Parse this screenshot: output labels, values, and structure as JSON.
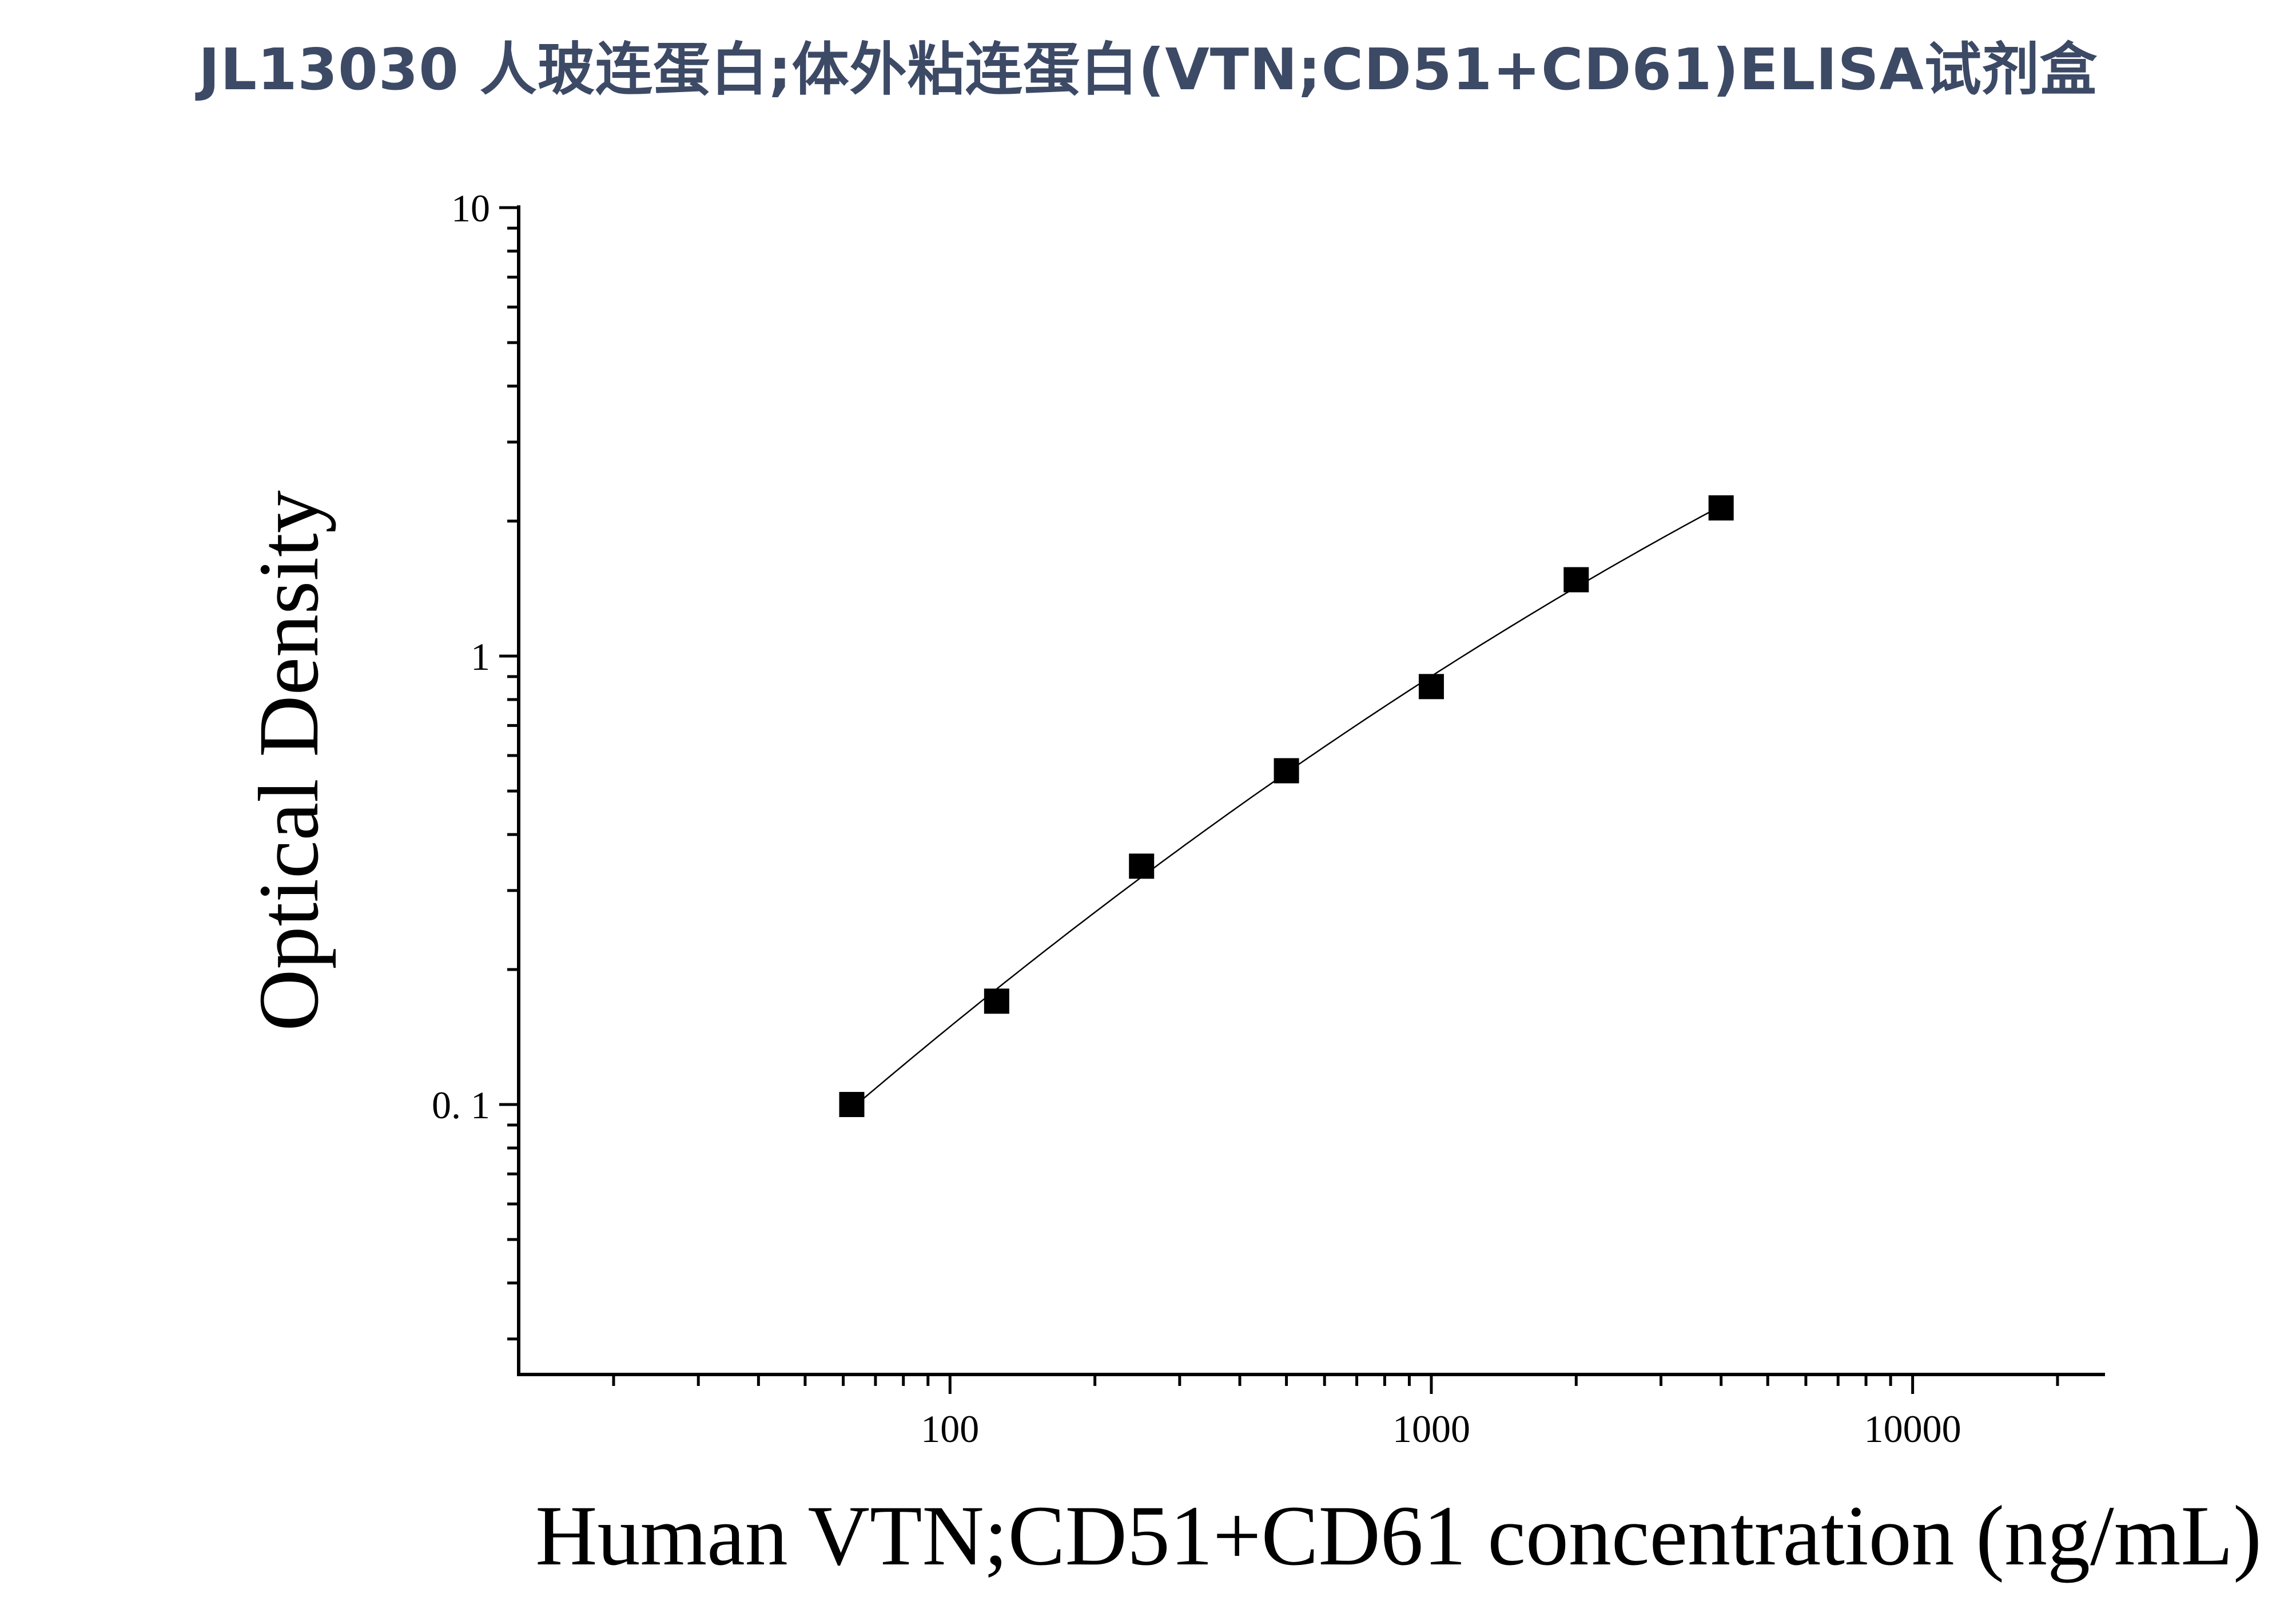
{
  "chart_data": {
    "type": "scatter",
    "title": "JL13030 人玻连蛋白;体外粘连蛋白(VTN;CD51+CD61)ELISA试剂盒",
    "xlabel": "Human VTN;CD51+CD61 concentration (ng/mL)",
    "ylabel": "Optical Density",
    "x_scale": "log",
    "y_scale": "log",
    "xlim": [
      12.7,
      25100
    ],
    "ylim": [
      0.025,
      10
    ],
    "x_ticks": [
      {
        "value": 100,
        "label": "100"
      },
      {
        "value": 1000,
        "label": "1000"
      },
      {
        "value": 10000,
        "label": "10000"
      }
    ],
    "y_ticks": [
      {
        "value": 0.1,
        "label": "0. 1"
      },
      {
        "value": 1,
        "label": "1"
      },
      {
        "value": 10,
        "label": "10"
      }
    ],
    "grid": false,
    "series": [
      {
        "marker": "square",
        "color": "#000000",
        "x": [
          62.5,
          125,
          250,
          500,
          1000,
          2000,
          4000
        ],
        "y": [
          0.1,
          0.17,
          0.34,
          0.555,
          0.855,
          1.48,
          2.14
        ]
      }
    ],
    "fit_curve": {
      "color": "#000000",
      "x_range": [
        62.5,
        4000
      ]
    }
  }
}
